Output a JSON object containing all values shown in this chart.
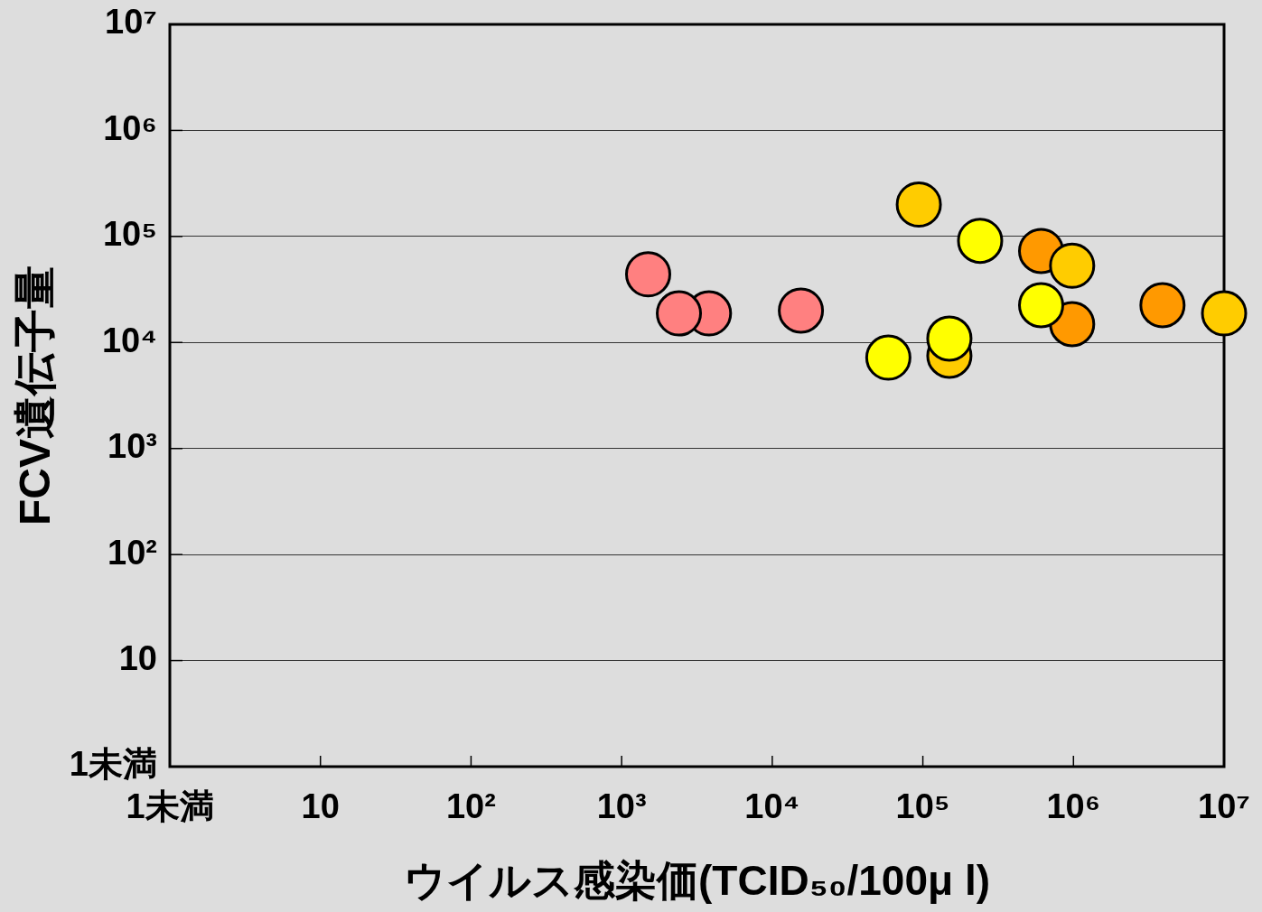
{
  "chart_data": {
    "type": "scatter",
    "xlabel": "ウイルス感染価(TCID₅₀/100μ l)",
    "ylabel": "FCV遺伝子量",
    "series": [
      {
        "color": "#ff8080",
        "x": [
          1500,
          3800,
          2400,
          15500
        ],
        "values": [
          44000,
          18800,
          18800,
          20000
        ]
      },
      {
        "color": "#ffff00",
        "x": [
          59000,
          150000,
          240000,
          610000
        ],
        "values": [
          7200,
          10900,
          91000,
          22500
        ]
      },
      {
        "color": "#ffcc00",
        "x": [
          94000,
          150000,
          980000,
          10000000
        ],
        "values": [
          200000,
          7500,
          53000,
          18800
        ]
      },
      {
        "color": "#ff9900",
        "x": [
          610000,
          980000,
          3900000
        ],
        "values": [
          73000,
          14900,
          22500
        ]
      }
    ],
    "log": "xy",
    "xlim": [
      1,
      10000000
    ],
    "ylim": [
      1,
      10000000
    ],
    "xticks": [
      {
        "value": 1,
        "label": "1未満"
      },
      10,
      {
        "value": 100,
        "label": "10²"
      },
      {
        "value": 1000,
        "label": "10³"
      },
      {
        "value": 10000,
        "label": "10⁴"
      },
      {
        "value": 100000,
        "label": "10⁵"
      },
      {
        "value": 1000000,
        "label": "10⁶"
      },
      {
        "value": 10000000,
        "label": "10⁷"
      }
    ],
    "yticks": [
      {
        "value": 1,
        "label": "1未満"
      },
      10,
      {
        "value": 100,
        "label": "10²"
      },
      {
        "value": 1000,
        "label": "10³"
      },
      {
        "value": 10000,
        "label": "10⁴"
      },
      {
        "value": 100000,
        "label": "10⁵"
      },
      {
        "value": 1000000,
        "label": "10⁶"
      },
      {
        "value": 10000000,
        "label": "10⁷"
      }
    ],
    "grid": "y",
    "marker": "circle"
  }
}
